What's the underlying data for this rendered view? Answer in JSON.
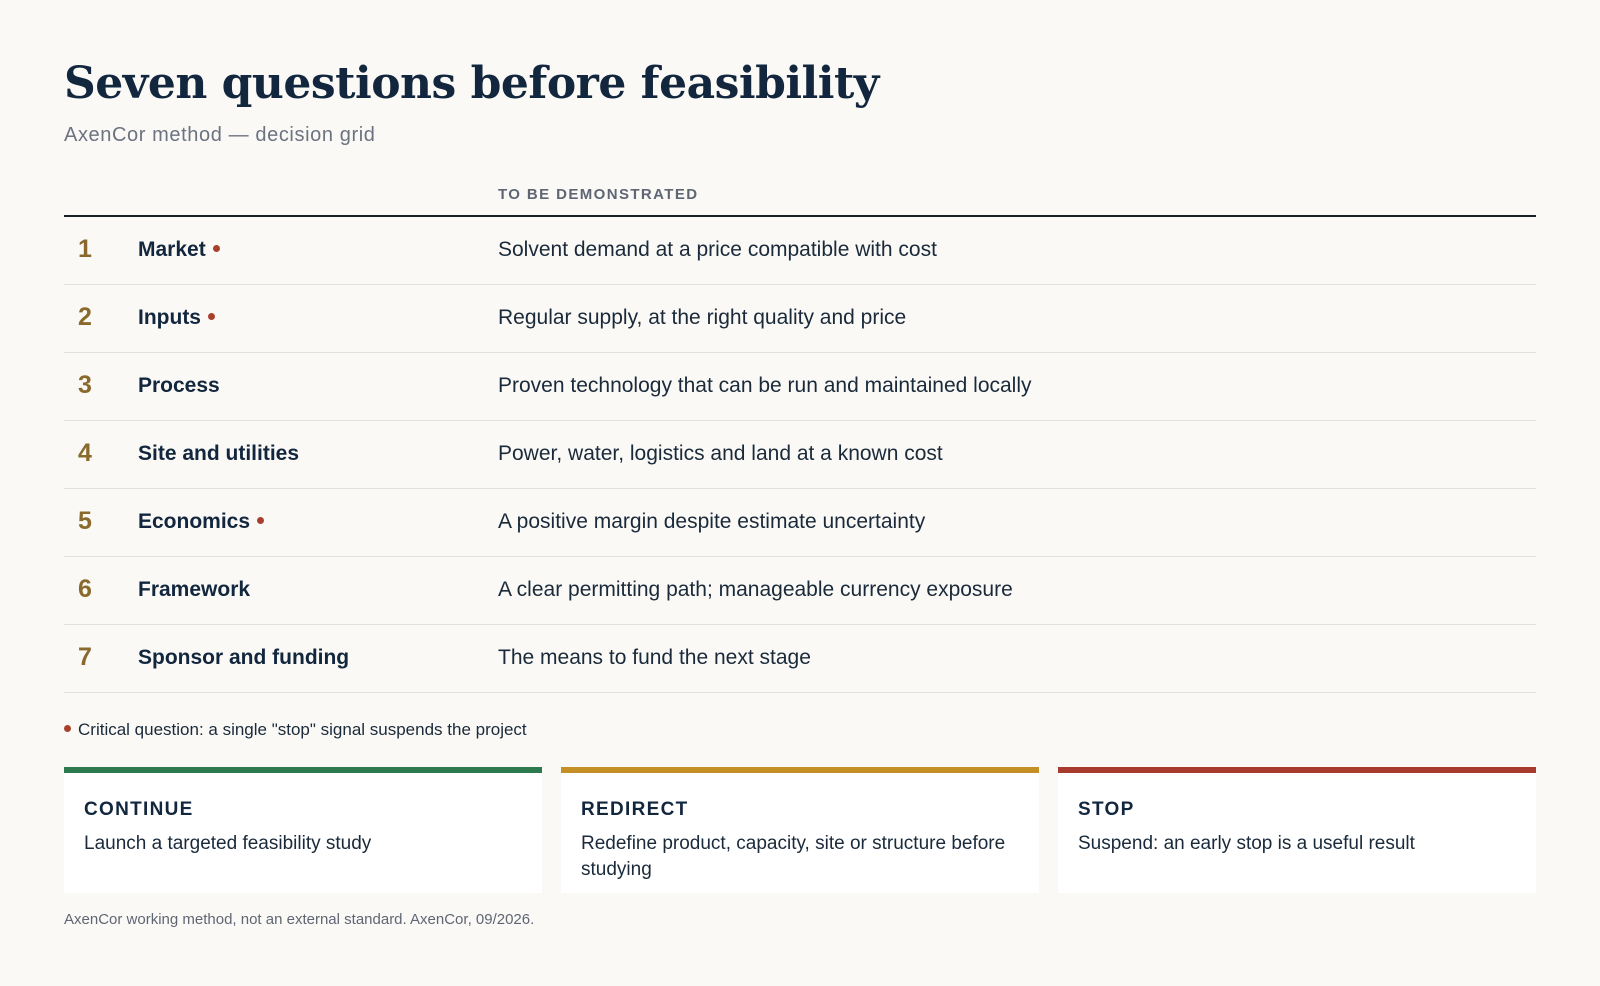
{
  "header": {
    "title": "Seven questions before feasibility",
    "subtitle": "AxenCor method — decision grid"
  },
  "table": {
    "column_header": "TO BE DEMONSTRATED",
    "rows": [
      {
        "num": "1",
        "name": "Market",
        "critical": true,
        "desc": "Solvent demand at a price compatible with cost"
      },
      {
        "num": "2",
        "name": "Inputs",
        "critical": true,
        "desc": "Regular supply, at the right quality and price"
      },
      {
        "num": "3",
        "name": "Process",
        "critical": false,
        "desc": "Proven technology that can be run and maintained locally"
      },
      {
        "num": "4",
        "name": "Site and utilities",
        "critical": false,
        "desc": "Power, water, logistics and land at a known cost"
      },
      {
        "num": "5",
        "name": "Economics",
        "critical": true,
        "desc": "A positive margin despite estimate uncertainty"
      },
      {
        "num": "6",
        "name": "Framework",
        "critical": false,
        "desc": "A clear permitting path; manageable currency exposure"
      },
      {
        "num": "7",
        "name": "Sponsor and funding",
        "critical": false,
        "desc": "The means to fund the next stage"
      }
    ]
  },
  "legend": {
    "text": "Critical question: a single \"stop\" signal suspends the project"
  },
  "outcomes": [
    {
      "title": "CONTINUE",
      "desc": "Launch a targeted feasibility study",
      "color": "#2e7a4f"
    },
    {
      "title": "REDIRECT",
      "desc": "Redefine product, capacity, site or structure before studying",
      "color": "#c49025"
    },
    {
      "title": "STOP",
      "desc": "Suspend: an early stop is a useful result",
      "color": "#a83a2e"
    }
  ],
  "footnote": "AxenCor working method, not an external standard. AxenCor, 09/2026.",
  "colors": {
    "critical_marker": "#a8402e",
    "number": "#8a6a2c",
    "title": "#12263e"
  }
}
